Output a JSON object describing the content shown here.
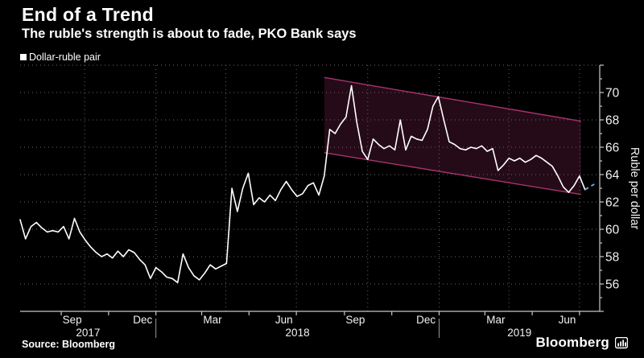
{
  "header": {
    "title": "End of a Trend",
    "subtitle": "The ruble's strength is about to fade, PKO Bank says"
  },
  "legend": {
    "label": "Dollar-ruble pair",
    "marker_color": "#ffffff"
  },
  "footer": {
    "source": "Source: Bloomberg",
    "brand": "Bloomberg"
  },
  "chart_data": {
    "type": "line",
    "title": "End of a Trend",
    "ylabel": "Ruble per dollar",
    "ylim": [
      54,
      72
    ],
    "yticks_major": [
      56,
      58,
      60,
      62,
      64,
      66,
      68,
      70
    ],
    "x_domain": [
      "2017-07-10",
      "2019-07-27"
    ],
    "x_ticks": [
      "2017-09-01",
      "2017-11-01",
      "2018-01-01",
      "2018-03-01",
      "2018-05-01",
      "2018-07-01",
      "2018-09-01",
      "2018-11-01",
      "2019-01-01",
      "2019-03-01",
      "2019-05-01",
      "2019-07-01"
    ],
    "x_gridlines": [
      "2017-10-01",
      "2018-01-01",
      "2018-04-01",
      "2018-07-01",
      "2018-10-01",
      "2019-01-01",
      "2019-04-01",
      "2019-07-01"
    ],
    "x_month_labels": [
      {
        "date": "2017-09-15",
        "label": "Sep"
      },
      {
        "date": "2017-12-15",
        "label": "Dec"
      },
      {
        "date": "2018-03-15",
        "label": "Mar"
      },
      {
        "date": "2018-06-15",
        "label": "Jun"
      },
      {
        "date": "2018-09-15",
        "label": "Sep"
      },
      {
        "date": "2018-12-15",
        "label": "Dec"
      },
      {
        "date": "2019-03-15",
        "label": "Mar"
      },
      {
        "date": "2019-06-15",
        "label": "Jun"
      }
    ],
    "year_dividers": [
      "2018-01-01",
      "2019-01-01"
    ],
    "x_year_labels": [
      {
        "label": "2017",
        "from": "2017-07-10",
        "to": "2018-01-01"
      },
      {
        "label": "2018",
        "from": "2018-01-01",
        "to": "2019-01-01"
      },
      {
        "label": "2019",
        "from": "2019-01-01",
        "to": "2019-07-27"
      }
    ],
    "grid": true,
    "legend_position": "top-left",
    "series": [
      {
        "name": "Dollar-ruble pair",
        "color": "#ffffff",
        "points": [
          [
            "2017-07-10",
            60.7
          ],
          [
            "2017-07-17",
            59.3
          ],
          [
            "2017-07-24",
            60.2
          ],
          [
            "2017-07-31",
            60.5
          ],
          [
            "2017-08-07",
            60.1
          ],
          [
            "2017-08-14",
            59.8
          ],
          [
            "2017-08-21",
            59.9
          ],
          [
            "2017-08-28",
            59.8
          ],
          [
            "2017-09-04",
            60.2
          ],
          [
            "2017-09-11",
            59.3
          ],
          [
            "2017-09-18",
            60.8
          ],
          [
            "2017-09-25",
            59.8
          ],
          [
            "2017-10-02",
            59.2
          ],
          [
            "2017-10-09",
            58.7
          ],
          [
            "2017-10-16",
            58.3
          ],
          [
            "2017-10-23",
            58.0
          ],
          [
            "2017-10-30",
            58.2
          ],
          [
            "2017-11-06",
            57.9
          ],
          [
            "2017-11-13",
            58.4
          ],
          [
            "2017-11-20",
            58.0
          ],
          [
            "2017-11-27",
            58.5
          ],
          [
            "2017-12-04",
            58.3
          ],
          [
            "2017-12-11",
            57.8
          ],
          [
            "2017-12-18",
            57.4
          ],
          [
            "2017-12-25",
            56.4
          ],
          [
            "2018-01-01",
            57.2
          ],
          [
            "2018-01-08",
            56.9
          ],
          [
            "2018-01-15",
            56.5
          ],
          [
            "2018-01-22",
            56.4
          ],
          [
            "2018-01-29",
            56.1
          ],
          [
            "2018-02-05",
            58.2
          ],
          [
            "2018-02-12",
            57.2
          ],
          [
            "2018-02-19",
            56.6
          ],
          [
            "2018-02-26",
            56.3
          ],
          [
            "2018-03-05",
            56.8
          ],
          [
            "2018-03-12",
            57.4
          ],
          [
            "2018-03-19",
            57.1
          ],
          [
            "2018-03-26",
            57.3
          ],
          [
            "2018-04-02",
            57.5
          ],
          [
            "2018-04-09",
            63.0
          ],
          [
            "2018-04-16",
            61.3
          ],
          [
            "2018-04-23",
            63.0
          ],
          [
            "2018-04-30",
            64.1
          ],
          [
            "2018-05-07",
            61.8
          ],
          [
            "2018-05-14",
            62.3
          ],
          [
            "2018-05-21",
            62.0
          ],
          [
            "2018-05-28",
            62.5
          ],
          [
            "2018-06-04",
            62.1
          ],
          [
            "2018-06-11",
            62.9
          ],
          [
            "2018-06-18",
            63.5
          ],
          [
            "2018-06-25",
            62.9
          ],
          [
            "2018-07-02",
            62.4
          ],
          [
            "2018-07-09",
            62.6
          ],
          [
            "2018-07-16",
            63.2
          ],
          [
            "2018-07-23",
            63.4
          ],
          [
            "2018-07-30",
            62.5
          ],
          [
            "2018-08-06",
            63.9
          ],
          [
            "2018-08-13",
            67.3
          ],
          [
            "2018-08-20",
            67.0
          ],
          [
            "2018-08-27",
            67.7
          ],
          [
            "2018-09-03",
            68.2
          ],
          [
            "2018-09-10",
            70.5
          ],
          [
            "2018-09-17",
            67.8
          ],
          [
            "2018-09-24",
            65.7
          ],
          [
            "2018-10-01",
            65.1
          ],
          [
            "2018-10-08",
            66.6
          ],
          [
            "2018-10-15",
            66.2
          ],
          [
            "2018-10-22",
            65.9
          ],
          [
            "2018-10-29",
            66.1
          ],
          [
            "2018-11-05",
            65.8
          ],
          [
            "2018-11-12",
            68.0
          ],
          [
            "2018-11-19",
            65.8
          ],
          [
            "2018-11-26",
            66.8
          ],
          [
            "2018-12-03",
            66.6
          ],
          [
            "2018-12-10",
            66.5
          ],
          [
            "2018-12-17",
            67.3
          ],
          [
            "2018-12-24",
            69.0
          ],
          [
            "2018-12-31",
            69.7
          ],
          [
            "2019-01-07",
            68.0
          ],
          [
            "2019-01-14",
            66.4
          ],
          [
            "2019-01-21",
            66.2
          ],
          [
            "2019-01-28",
            65.9
          ],
          [
            "2019-02-04",
            65.8
          ],
          [
            "2019-02-11",
            66.0
          ],
          [
            "2019-02-18",
            65.9
          ],
          [
            "2019-02-25",
            66.1
          ],
          [
            "2019-03-04",
            65.7
          ],
          [
            "2019-03-11",
            65.9
          ],
          [
            "2019-03-18",
            64.3
          ],
          [
            "2019-03-25",
            64.7
          ],
          [
            "2019-04-01",
            65.2
          ],
          [
            "2019-04-08",
            65.0
          ],
          [
            "2019-04-15",
            65.2
          ],
          [
            "2019-04-22",
            64.9
          ],
          [
            "2019-04-29",
            65.1
          ],
          [
            "2019-05-06",
            65.4
          ],
          [
            "2019-05-13",
            65.2
          ],
          [
            "2019-05-20",
            64.9
          ],
          [
            "2019-05-27",
            64.6
          ],
          [
            "2019-06-03",
            63.9
          ],
          [
            "2019-06-10",
            63.1
          ],
          [
            "2019-06-17",
            62.7
          ],
          [
            "2019-06-24",
            63.2
          ],
          [
            "2019-07-01",
            63.9
          ],
          [
            "2019-07-08",
            62.9
          ]
        ]
      }
    ],
    "forecast": {
      "name": "PKO forecast (dashed)",
      "color": "#72b1dd",
      "points": [
        [
          "2019-07-08",
          62.9
        ],
        [
          "2019-07-14",
          63.1
        ],
        [
          "2019-07-20",
          63.3
        ]
      ]
    },
    "trend_channel": {
      "start_date": "2018-08-06",
      "end_date": "2019-07-03",
      "top_start": 71.1,
      "top_end": 67.9,
      "bottom_start": 65.6,
      "bottom_end": 62.55,
      "border_color": "#a8336f",
      "fill_color": "rgba(168,51,111,0.22)"
    },
    "colors": {
      "background": "#000000",
      "grid": "#6a6a6a",
      "axis": "#c8c8c8",
      "tick_label": "#f2f2f2",
      "year_divider": "#9a9a9a"
    }
  }
}
